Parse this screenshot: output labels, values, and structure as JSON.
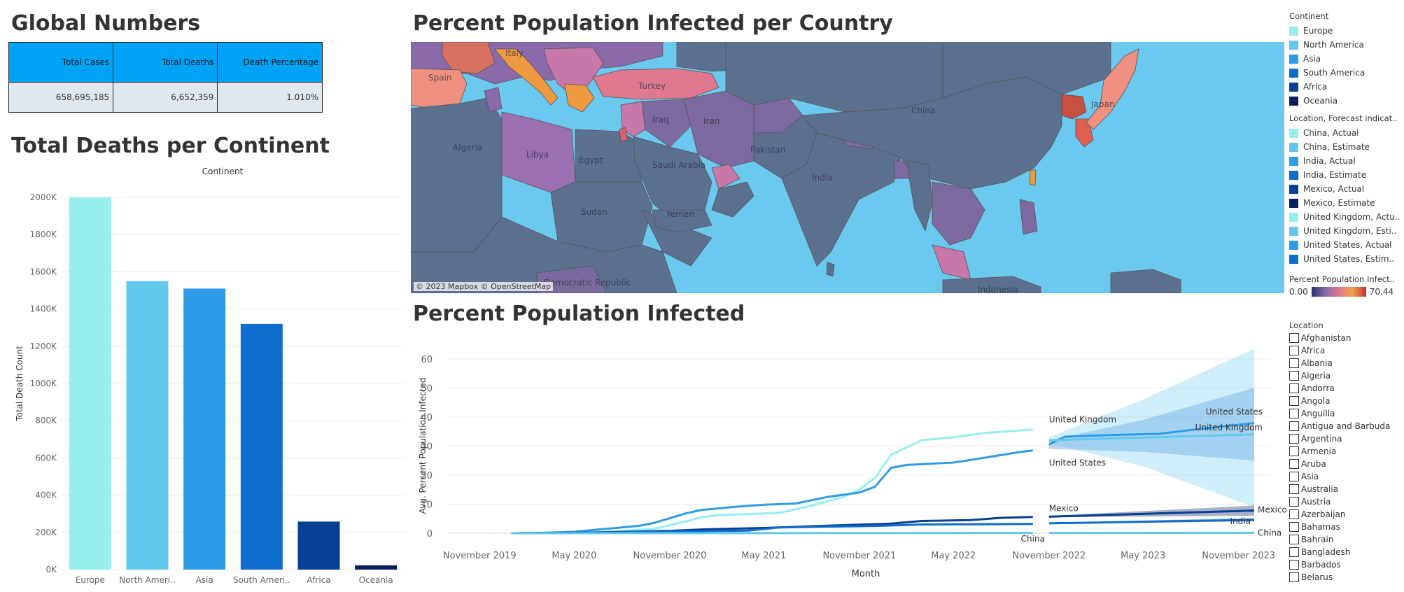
{
  "global": {
    "title": "Global Numbers",
    "headers": [
      "Total Cases",
      "Total Deaths",
      "Death Percentage"
    ],
    "values": [
      "658,695,185",
      "6,652,359",
      "1.010%"
    ]
  },
  "deaths": {
    "title": "Total Deaths per Continent"
  },
  "map": {
    "title": "Percent Population Infected per Country",
    "attribution": "© 2023 Mapbox © OpenStreetMap",
    "labels": [
      "Spain",
      "Italy",
      "Turkey",
      "Algeria",
      "Libya",
      "Egypt",
      "Saudi Arabia",
      "Iraq",
      "Iran",
      "Pakistan",
      "India",
      "China",
      "Japan",
      "Sudan",
      "Yemen",
      "Democratic Republic",
      "Indonesia"
    ],
    "land_color": "#5c7090",
    "water_color": "#6bc8ee"
  },
  "infected": {
    "title": "Percent Population Infected"
  },
  "legend": {
    "continent_title": "Continent",
    "continents": [
      {
        "label": "Europe",
        "color": "#96eeee"
      },
      {
        "label": "North America",
        "color": "#62c8ec"
      },
      {
        "label": "Asia",
        "color": "#2e9be8"
      },
      {
        "label": "South America",
        "color": "#0d6ccc"
      },
      {
        "label": "Africa",
        "color": "#063f96"
      },
      {
        "label": "Oceania",
        "color": "#0a1e5e"
      }
    ],
    "forecast_title": "Location, Forecast indicat..",
    "forecast": [
      {
        "label": "China, Actual",
        "color": "#96eeee"
      },
      {
        "label": "China, Estimate",
        "color": "#62c8ec"
      },
      {
        "label": "India, Actual",
        "color": "#2e9be8"
      },
      {
        "label": "India, Estimate",
        "color": "#0d6ccc"
      },
      {
        "label": "Mexico, Actual",
        "color": "#063f96"
      },
      {
        "label": "Mexico, Estimate",
        "color": "#0a1e5e"
      },
      {
        "label": "United Kingdom, Actu..",
        "color": "#96eeee"
      },
      {
        "label": "United Kingdom, Esti..",
        "color": "#62c8ec"
      },
      {
        "label": "United States, Actual",
        "color": "#2e9be8"
      },
      {
        "label": "United States, Estim..",
        "color": "#0d6ccc"
      }
    ],
    "gradient_title": "Percent Population Infect..",
    "gradient_min": "0.00",
    "gradient_max": "70.44",
    "location_title": "Location",
    "locations": [
      "Afghanistan",
      "Africa",
      "Albania",
      "Algeria",
      "Andorra",
      "Angola",
      "Anguilla",
      "Antigua and Barbuda",
      "Argentina",
      "Armenia",
      "Aruba",
      "Asia",
      "Australia",
      "Austria",
      "Azerbaijan",
      "Bahamas",
      "Bahrain",
      "Bangladesh",
      "Barbados",
      "Belarus"
    ]
  },
  "chart_data": [
    {
      "type": "bar",
      "title": "Total Deaths per Continent",
      "header": "Continent",
      "categories": [
        "Europe",
        "North Ameri..",
        "Asia",
        "South Ameri..",
        "Africa",
        "Oceania"
      ],
      "values": [
        2000000,
        1550000,
        1510000,
        1320000,
        258000,
        23000
      ],
      "colors": [
        "#96eeee",
        "#62c8ec",
        "#2e9be8",
        "#0d6ccc",
        "#063f96",
        "#0a1e5e"
      ],
      "ylabel": "Total Death Count",
      "ylim": [
        0,
        2000000
      ],
      "yticks": [
        0,
        200000,
        400000,
        600000,
        800000,
        1000000,
        1200000,
        1400000,
        1600000,
        1800000,
        2000000
      ],
      "ytick_labels": [
        "0K",
        "200K",
        "400K",
        "600K",
        "800K",
        "1000K",
        "1200K",
        "1400K",
        "1600K",
        "1800K",
        "2000K"
      ],
      "grid": true
    },
    {
      "type": "line",
      "title": "Percent Population Infected",
      "xlabel": "Month",
      "ylabel": "Avg. Percent Population Infected",
      "ylim": [
        0,
        65
      ],
      "yticks": [
        0,
        10,
        20,
        30,
        40,
        50,
        60
      ],
      "xlim": [
        "2019-09-01",
        "2024-01-01"
      ],
      "xticks": [
        {
          "date": "2019-11-01",
          "label": "November 2019"
        },
        {
          "date": "2020-05-01",
          "label": "May 2020"
        },
        {
          "date": "2020-11-01",
          "label": "November 2020"
        },
        {
          "date": "2021-05-01",
          "label": "May 2021"
        },
        {
          "date": "2021-11-01",
          "label": "November 2021"
        },
        {
          "date": "2022-05-01",
          "label": "May 2022"
        },
        {
          "date": "2022-11-01",
          "label": "November 2022"
        },
        {
          "date": "2023-05-01",
          "label": "May 2023"
        },
        {
          "date": "2023-11-01",
          "label": "November 2023"
        }
      ],
      "series": [
        {
          "name": "United Kingdom",
          "color": "#96eeee",
          "label_at": "actual_end",
          "actual": [
            [
              "2020-01-01",
              0
            ],
            [
              "2020-04-01",
              0.3
            ],
            [
              "2020-07-01",
              0.5
            ],
            [
              "2020-10-01",
              1.5
            ],
            [
              "2020-12-01",
              4
            ],
            [
              "2021-01-01",
              5.5
            ],
            [
              "2021-02-01",
              6.2
            ],
            [
              "2021-04-01",
              6.6
            ],
            [
              "2021-06-01",
              7
            ],
            [
              "2021-08-01",
              9.5
            ],
            [
              "2021-10-01",
              12.5
            ],
            [
              "2021-11-01",
              15
            ],
            [
              "2021-12-01",
              19
            ],
            [
              "2022-01-01",
              27
            ],
            [
              "2022-03-01",
              32
            ],
            [
              "2022-05-01",
              33
            ],
            [
              "2022-07-01",
              34.5
            ],
            [
              "2022-09-01",
              35.3
            ],
            [
              "2022-10-01",
              35.7
            ]
          ],
          "estimate": [],
          "band": []
        },
        {
          "name": "United States",
          "color": "#2e9be8",
          "label_at": "actual_end",
          "actual": [
            [
              "2020-01-01",
              0
            ],
            [
              "2020-03-01",
              0.1
            ],
            [
              "2020-05-01",
              0.5
            ],
            [
              "2020-07-01",
              1.5
            ],
            [
              "2020-09-01",
              2.5
            ],
            [
              "2020-10-01",
              3.5
            ],
            [
              "2020-12-01",
              6.8
            ],
            [
              "2021-01-01",
              8
            ],
            [
              "2021-03-01",
              9
            ],
            [
              "2021-05-01",
              9.8
            ],
            [
              "2021-07-01",
              10.2
            ],
            [
              "2021-09-01",
              12.5
            ],
            [
              "2021-11-01",
              14
            ],
            [
              "2021-12-01",
              16
            ],
            [
              "2022-01-01",
              22.5
            ],
            [
              "2022-02-01",
              23.5
            ],
            [
              "2022-05-01",
              24.3
            ],
            [
              "2022-07-01",
              26
            ],
            [
              "2022-09-01",
              27.8
            ],
            [
              "2022-10-01",
              28.5
            ]
          ],
          "estimate": [
            [
              "2022-11-01",
              30.5
            ],
            [
              "2022-12-01",
              33.2
            ],
            [
              "2023-03-01",
              33.8
            ],
            [
              "2023-06-01",
              34.2
            ],
            [
              "2023-08-01",
              35.5
            ],
            [
              "2023-12-01",
              37.9
            ]
          ],
          "band_color": "#1a6fd0",
          "band_opacity": 0.28,
          "band": [
            [
              "2022-11-01",
              29,
              32
            ],
            [
              "2023-05-01",
              28,
              39
            ],
            [
              "2023-12-01",
              25,
              50
            ]
          ]
        },
        {
          "name": "United Kingdom",
          "color": "#62c8ec",
          "label_at": "estimate_end",
          "actual": [],
          "estimate": [
            [
              "2022-11-01",
              32
            ],
            [
              "2023-12-01",
              34
            ]
          ],
          "band_color": "#62c8ec",
          "band_opacity": 0.3,
          "band": [
            [
              "2022-11-01",
              31,
              33
            ],
            [
              "2023-05-01",
              23,
              46
            ],
            [
              "2023-12-01",
              9,
              63.5
            ]
          ]
        },
        {
          "name": "Mexico",
          "color": "#063f96",
          "label_at": "both_ends",
          "actual": [
            [
              "2020-01-01",
              0
            ],
            [
              "2020-06-01",
              0.2
            ],
            [
              "2020-11-01",
              0.8
            ],
            [
              "2021-01-01",
              1.3
            ],
            [
              "2021-05-01",
              1.8
            ],
            [
              "2021-09-01",
              2.6
            ],
            [
              "2022-01-01",
              3.3
            ],
            [
              "2022-03-01",
              4.2
            ],
            [
              "2022-06-01",
              4.5
            ],
            [
              "2022-08-01",
              5.3
            ],
            [
              "2022-10-01",
              5.6
            ]
          ],
          "estimate": [
            [
              "2022-11-01",
              5.7
            ],
            [
              "2023-12-01",
              7.8
            ]
          ],
          "band_color": "#0a1e5e",
          "band_opacity": 0.35,
          "band": [
            [
              "2022-11-01",
              5.5,
              6
            ],
            [
              "2023-12-01",
              6,
              9.5
            ]
          ]
        },
        {
          "name": "India",
          "color": "#0d6ccc",
          "label_at": "estimate_end",
          "actual": [
            [
              "2020-01-01",
              0
            ],
            [
              "2020-06-01",
              0.1
            ],
            [
              "2020-11-01",
              0.6
            ],
            [
              "2021-04-01",
              0.9
            ],
            [
              "2021-06-01",
              2
            ],
            [
              "2021-12-01",
              2.5
            ],
            [
              "2022-03-01",
              3
            ],
            [
              "2022-10-01",
              3.2
            ]
          ],
          "estimate": [
            [
              "2022-11-01",
              3.4
            ],
            [
              "2023-12-01",
              4.6
            ]
          ],
          "band_color": "#0d6ccc",
          "band_opacity": 0.3,
          "band": [
            [
              "2022-11-01",
              3.2,
              3.6
            ],
            [
              "2023-12-01",
              4,
              5.3
            ]
          ]
        },
        {
          "name": "China",
          "color": "#62c8ec",
          "label_at": "both_ends",
          "actual": [
            [
              "2020-01-01",
              0
            ],
            [
              "2022-10-01",
              0.1
            ]
          ],
          "estimate": [
            [
              "2022-11-01",
              0.1
            ],
            [
              "2023-12-01",
              0.15
            ]
          ],
          "band": []
        }
      ]
    }
  ]
}
